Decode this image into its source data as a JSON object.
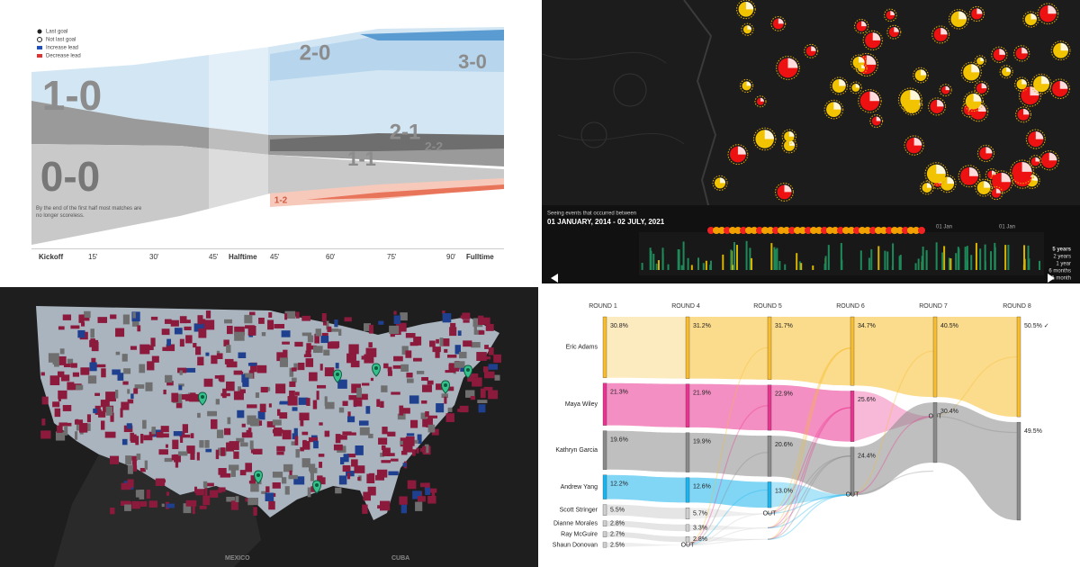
{
  "goals_chart": {
    "legend": [
      "Last goal",
      "Not last goal",
      "Increase lead",
      "Decrease lead"
    ],
    "scores": [
      "1-0",
      "0-0",
      "2-0",
      "3-0",
      "2-1",
      "1-1",
      "2-2",
      "1-2"
    ],
    "x_labels": [
      "Kickoff",
      "15'",
      "30'",
      "45'",
      "Halftime",
      "45'",
      "60'",
      "75'",
      "90'",
      "Fulltime"
    ],
    "annotations": [
      "By the end of the first half most matches are no longer scoreless."
    ]
  },
  "events_map": {
    "caption": "Seeing events that occurred between",
    "range": "01 JANUARY, 2014 - 02 JULY, 2021",
    "periods": [
      "5 years",
      "2 years",
      "1 year",
      "6 months",
      "1 month"
    ],
    "axis_labels": [
      "01 Jan",
      "01 Jan"
    ]
  },
  "county_map": {
    "labels": [
      "MEXICO",
      "CUBA"
    ]
  },
  "chart_data": {
    "type": "rcv",
    "categories": [
      "ROUND 1",
      "ROUND 4",
      "ROUND 5",
      "ROUND 6",
      "ROUND 7",
      "ROUND 8"
    ],
    "series": [
      {
        "name": "Eric Adams",
        "color": "#f7bd2e",
        "values": [
          30.8,
          31.2,
          31.7,
          34.7,
          40.5,
          50.5
        ],
        "value_labels": [
          "30.8%",
          "31.2%",
          "31.7%",
          "34.7%",
          "40.5%",
          "50.5% ✓"
        ]
      },
      {
        "name": "Maya Wiley",
        "color": "#ea3390",
        "values": [
          21.3,
          21.9,
          22.9,
          25.6,
          null,
          null
        ],
        "value_labels": [
          "21.3%",
          "21.9%",
          "22.9%",
          "25.6%",
          "OUT",
          null
        ]
      },
      {
        "name": "Kathryn Garcia",
        "color": "#8a8a8a",
        "values": [
          19.6,
          19.9,
          20.6,
          24.4,
          30.4,
          49.5
        ],
        "value_labels": [
          "19.6%",
          "19.9%",
          "20.6%",
          "24.4%",
          "30.4%",
          "49.5%"
        ]
      },
      {
        "name": "Andrew Yang",
        "color": "#1ab4ee",
        "values": [
          12.2,
          12.6,
          13.0,
          null,
          null,
          null
        ],
        "value_labels": [
          "12.2%",
          "12.6%",
          "13.0%",
          "OUT",
          null,
          null
        ]
      },
      {
        "name": "Scott Stringer",
        "color": "#cfcfcf",
        "values": [
          5.5,
          5.7,
          null,
          null,
          null,
          null
        ],
        "value_labels": [
          "5.5%",
          "5.7%",
          "OUT",
          null,
          null,
          null
        ]
      },
      {
        "name": "Dianne Morales",
        "color": "#cfcfcf",
        "values": [
          2.8,
          3.3,
          null,
          null,
          null,
          null
        ],
        "value_labels": [
          "2.8%",
          "3.3%",
          null,
          null,
          null,
          null
        ]
      },
      {
        "name": "Ray McGuire",
        "color": "#cfcfcf",
        "values": [
          2.7,
          2.8,
          null,
          null,
          null,
          null
        ],
        "value_labels": [
          "2.7%",
          "2.8%",
          null,
          null,
          null,
          null
        ]
      },
      {
        "name": "Shaun Donovan",
        "color": "#cfcfcf",
        "values": [
          2.5,
          null,
          null,
          null,
          null,
          null
        ],
        "value_labels": [
          "2.5%",
          "OUT",
          null,
          null,
          null,
          null
        ]
      }
    ]
  }
}
